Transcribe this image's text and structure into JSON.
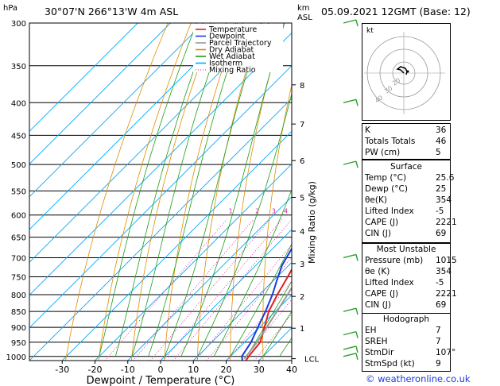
{
  "header": {
    "location": "30°07'N  266°13'W  4m  ASL",
    "datetime": "05.09.2021  12GMT  (Base: 12)",
    "hpa_unit": "hPa",
    "km_unit": "km",
    "asl_unit": "ASL"
  },
  "footer": {
    "copyright": "© weatheronline.co.uk"
  },
  "chart_data": {
    "type": "skew-t",
    "xlabel": "Dewpoint / Temperature (°C)",
    "ylabel_right": "Mixing Ratio (g/kg)",
    "x_ticks": [
      -30,
      -20,
      -10,
      0,
      10,
      20,
      30,
      40
    ],
    "xlim": [
      -40,
      40
    ],
    "pressure_levels": [
      300,
      350,
      400,
      450,
      500,
      550,
      600,
      650,
      700,
      750,
      800,
      850,
      900,
      950,
      1000
    ],
    "plim": [
      300,
      1015
    ],
    "altitude_ticks": [
      {
        "label": "8",
        "p": 375
      },
      {
        "label": "7",
        "p": 432
      },
      {
        "label": "6",
        "p": 493
      },
      {
        "label": "5",
        "p": 563
      },
      {
        "label": "4",
        "p": 636
      },
      {
        "label": "3",
        "p": 715
      },
      {
        "label": "2",
        "p": 805
      },
      {
        "label": "1",
        "p": 903
      },
      {
        "label": "LCL",
        "p": 1008
      }
    ],
    "mixing_ratio_labels": [
      1,
      2,
      3,
      4,
      5,
      8,
      10,
      15,
      20,
      25
    ],
    "legend": [
      {
        "name": "Temperature",
        "color": "#e02020",
        "style": "solid"
      },
      {
        "name": "Dewpoint",
        "color": "#1a3ae0",
        "style": "solid"
      },
      {
        "name": "Parcel Trajectory",
        "color": "#999999",
        "style": "solid"
      },
      {
        "name": "Dry Adiabat",
        "color": "#e08c00",
        "style": "solid"
      },
      {
        "name": "Wet Adiabat",
        "color": "#1a9e1a",
        "style": "solid"
      },
      {
        "name": "Isotherm",
        "color": "#00aaff",
        "style": "solid"
      },
      {
        "name": "Mixing Ratio",
        "color": "#d020a0",
        "style": "dotted"
      }
    ],
    "series": [
      {
        "name": "Temperature",
        "color": "#e02020",
        "points": [
          [
            1015,
            26
          ],
          [
            1000,
            25.6
          ],
          [
            950,
            24.8
          ],
          [
            900,
            21.5
          ],
          [
            850,
            18
          ],
          [
            800,
            15.5
          ],
          [
            750,
            13.2
          ],
          [
            700,
            10.6
          ],
          [
            650,
            6.6
          ],
          [
            600,
            3.4
          ],
          [
            550,
            -0.2
          ],
          [
            500,
            -5.5
          ],
          [
            450,
            -10
          ],
          [
            400,
            -16.5
          ],
          [
            350,
            -24
          ],
          [
            300,
            -32
          ]
        ]
      },
      {
        "name": "Dewpoint",
        "color": "#1a3ae0",
        "points": [
          [
            1015,
            25
          ],
          [
            1000,
            23.5
          ],
          [
            950,
            22
          ],
          [
            900,
            19.5
          ],
          [
            850,
            17
          ],
          [
            800,
            14
          ],
          [
            760,
            11
          ],
          [
            720,
            8
          ],
          [
            680,
            6
          ],
          [
            650,
            4
          ],
          [
            620,
            3
          ],
          [
            600,
            0
          ],
          [
            580,
            -2
          ],
          [
            560,
            -3
          ],
          [
            550,
            -8
          ],
          [
            540,
            -5
          ],
          [
            530,
            -4
          ],
          [
            520,
            -6
          ],
          [
            510,
            -7
          ],
          [
            500,
            -13
          ],
          [
            490,
            -9
          ],
          [
            480,
            -13
          ],
          [
            470,
            -11
          ],
          [
            460,
            -15
          ],
          [
            450,
            -14
          ],
          [
            430,
            -13
          ],
          [
            420,
            -17
          ],
          [
            400,
            -17
          ],
          [
            390,
            -19
          ],
          [
            380,
            -21
          ],
          [
            375,
            -37
          ],
          [
            350,
            -40
          ],
          [
            335,
            -52
          ],
          [
            320,
            -47
          ],
          [
            300,
            -45
          ]
        ]
      },
      {
        "name": "Parcel Trajectory",
        "color": "#999999",
        "points": [
          [
            1008,
            25
          ],
          [
            950,
            23.8
          ],
          [
            900,
            22.2
          ],
          [
            850,
            20.5
          ],
          [
            800,
            18.6
          ],
          [
            750,
            16.5
          ],
          [
            700,
            14.3
          ],
          [
            650,
            11.8
          ],
          [
            600,
            9
          ],
          [
            550,
            5.8
          ],
          [
            500,
            2
          ],
          [
            450,
            -2.4
          ],
          [
            400,
            -7.6
          ],
          [
            350,
            -14
          ],
          [
            300,
            -22
          ]
        ]
      }
    ],
    "hodograph": {
      "label": "kt",
      "ring_labels": [
        "20",
        "30",
        "40"
      ]
    },
    "wind_barbs": [
      {
        "p": 300
      },
      {
        "p": 400
      },
      {
        "p": 500
      },
      {
        "p": 700
      },
      {
        "p": 850
      },
      {
        "p": 925
      },
      {
        "p": 975
      },
      {
        "p": 1000
      }
    ]
  },
  "indices": {
    "top": [
      {
        "k": "K",
        "v": "36"
      },
      {
        "k": "Totals Totals",
        "v": "46"
      },
      {
        "k": "PW (cm)",
        "v": "5"
      }
    ],
    "surface": {
      "title": "Surface",
      "rows": [
        {
          "k": "Temp (°C)",
          "v": "25.6"
        },
        {
          "k": "Dewp (°C)",
          "v": "25"
        },
        {
          "k": "θe(K)",
          "v": "354"
        },
        {
          "k": "Lifted Index",
          "v": "-5"
        },
        {
          "k": "CAPE (J)",
          "v": "2221"
        },
        {
          "k": "CIN (J)",
          "v": "69"
        }
      ]
    },
    "most_unstable": {
      "title": "Most Unstable",
      "rows": [
        {
          "k": "Pressure (mb)",
          "v": "1015"
        },
        {
          "k": "θe (K)",
          "v": "354"
        },
        {
          "k": "Lifted Index",
          "v": "-5"
        },
        {
          "k": "CAPE (J)",
          "v": "2221"
        },
        {
          "k": "CIN (J)",
          "v": "69"
        }
      ]
    },
    "hodograph": {
      "title": "Hodograph",
      "rows": [
        {
          "k": "EH",
          "v": "7"
        },
        {
          "k": "SREH",
          "v": "7"
        },
        {
          "k": "StmDir",
          "v": "107°"
        },
        {
          "k": "StmSpd (kt)",
          "v": "9"
        }
      ]
    }
  }
}
